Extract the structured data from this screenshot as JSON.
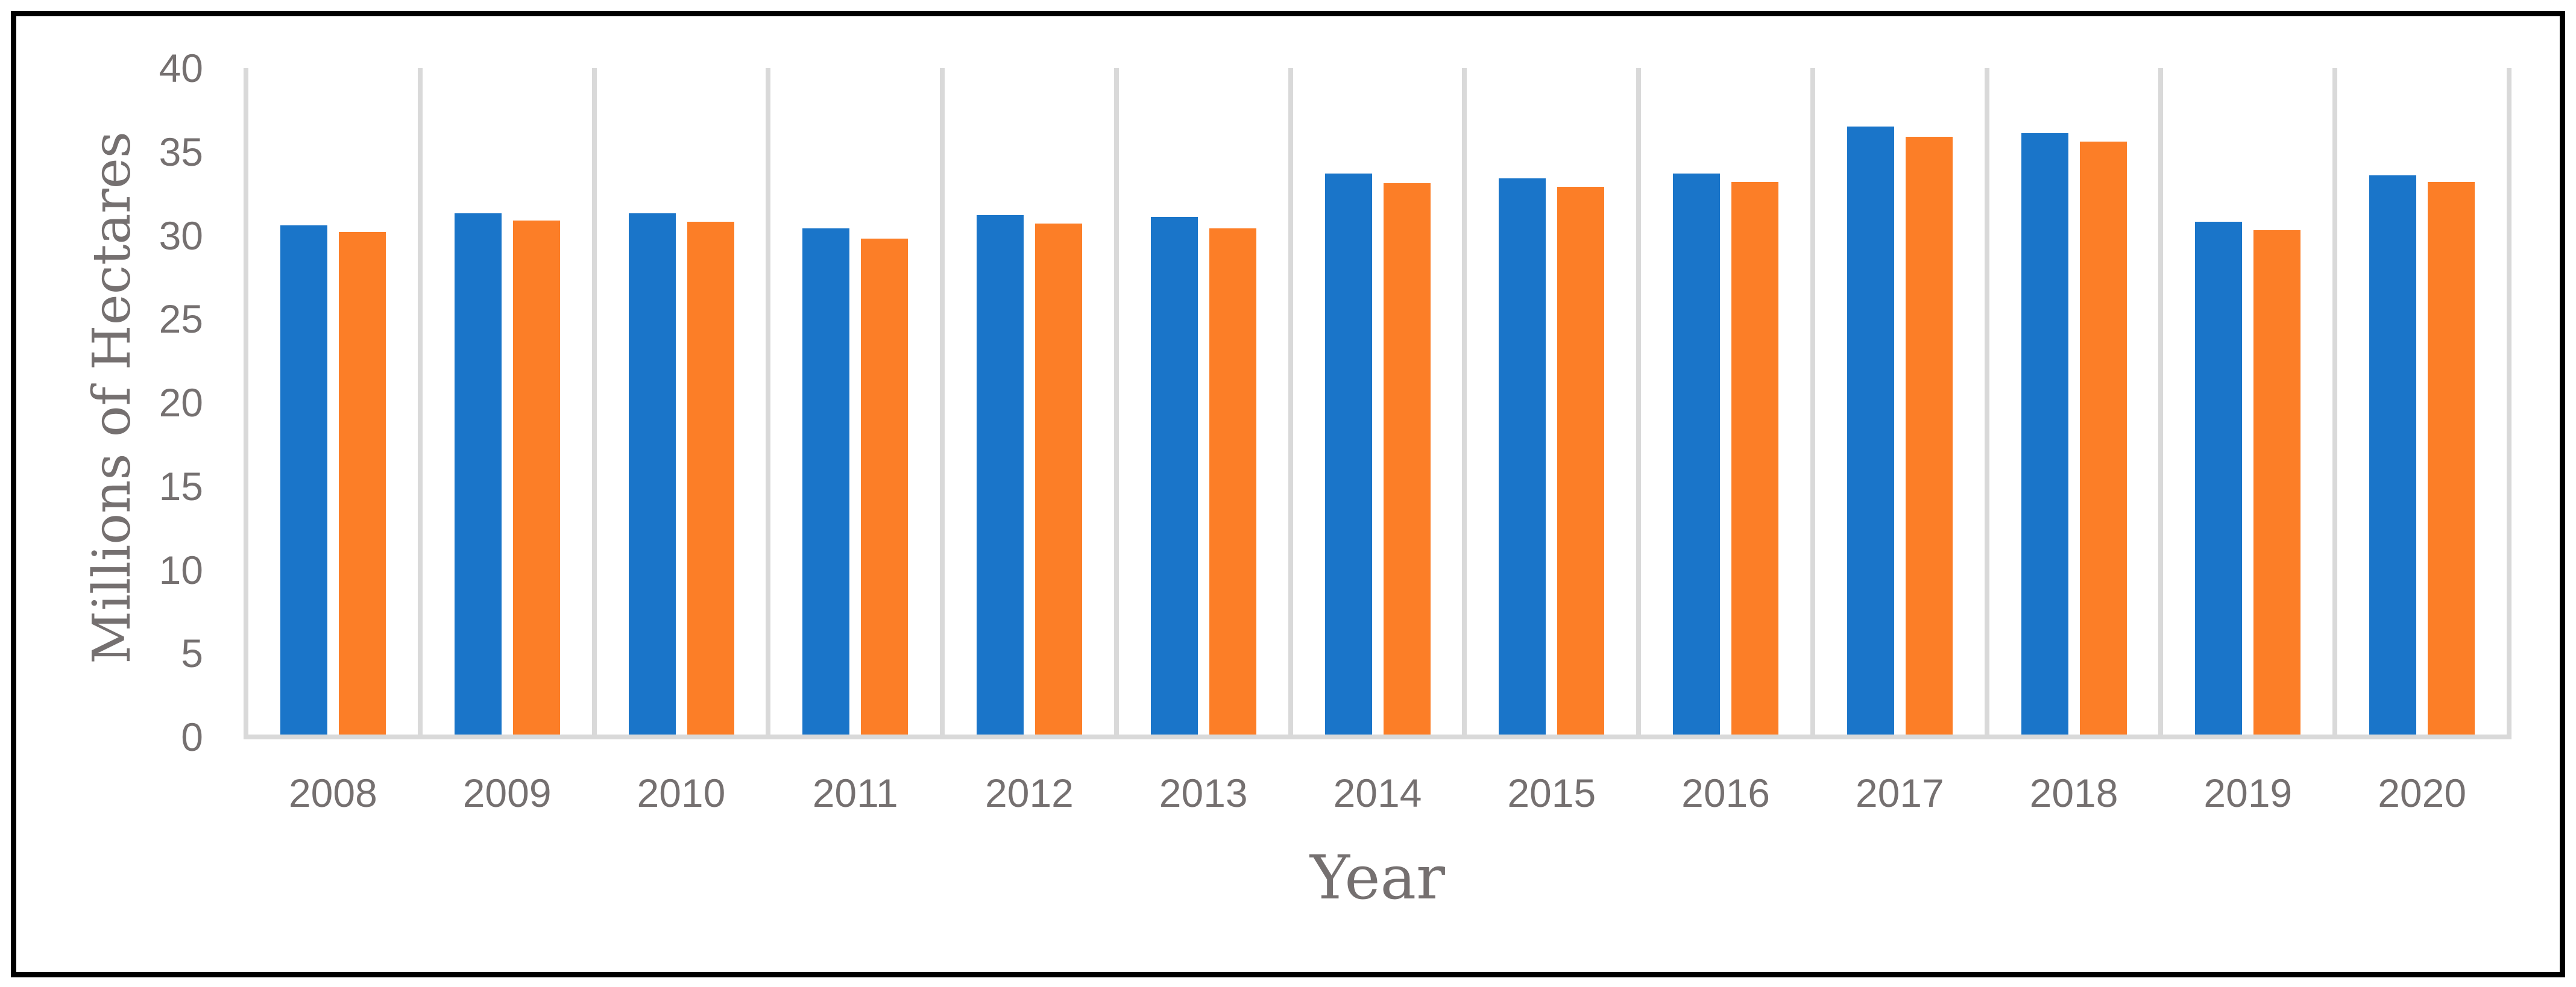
{
  "figure": {
    "background_color": "#ffffff",
    "border_color": "#000000",
    "text_color": "#757070",
    "gridline_color": "#d9d9d9"
  },
  "chart_data": {
    "type": "bar",
    "title": "",
    "xlabel": "Year",
    "ylabel": "Millions of Hectares",
    "categories": [
      "2008",
      "2009",
      "2010",
      "2011",
      "2012",
      "2013",
      "2014",
      "2015",
      "2016",
      "2017",
      "2018",
      "2019",
      "2020"
    ],
    "series": [
      {
        "name": "blue-series",
        "color": "#1a75c9",
        "values": [
          30.6,
          31.3,
          31.3,
          30.4,
          31.2,
          31.1,
          33.7,
          33.4,
          33.7,
          36.5,
          36.1,
          30.8,
          33.6
        ]
      },
      {
        "name": "orange-series",
        "color": "#fc7e27",
        "values": [
          30.2,
          30.9,
          30.8,
          29.8,
          30.7,
          30.4,
          33.1,
          32.9,
          33.2,
          35.9,
          35.6,
          30.3,
          33.2
        ]
      }
    ],
    "ylim": [
      0,
      40
    ],
    "ytick_step": 5,
    "yticks": [
      "0",
      "5",
      "10",
      "15",
      "20",
      "25",
      "30",
      "35",
      "40"
    ],
    "grid": "vertical-gridlines-only",
    "legend": "none",
    "axis_line": "bottom-only"
  }
}
